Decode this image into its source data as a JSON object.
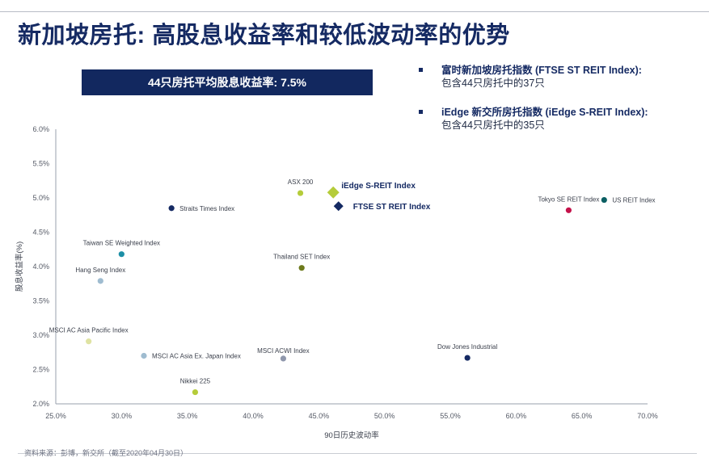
{
  "title": "新加坡房托: 高股息收益率和较低波动率的优势",
  "highlight_box": "44只房托平均股息收益率: 7.5%",
  "index_notes": [
    {
      "name": "富时新加坡房托指数 (FTSE ST REIT Index):",
      "desc": "包含44只房托中的37只"
    },
    {
      "name": "iEdge 新交所房托指数 (iEdge S-REIT Index):",
      "desc": "包含44只房托中的35只"
    }
  ],
  "source": "资料来源：彭博，新交所（截至2020年04月30日）",
  "colors": {
    "navy": "#152a63",
    "lime": "#b5cc3a",
    "teal": "#1d8fa6",
    "light_blue": "#9fbcd0",
    "pale_yellow": "#dfe3a3",
    "olive": "#6d7a1c",
    "gray_blue": "#8f97ac",
    "crimson": "#c4124a",
    "dark_teal": "#0b5f63"
  },
  "chart_data": {
    "type": "scatter",
    "xlabel": "90日历史波动率",
    "ylabel": "股息收益率(%)",
    "xlim": [
      25.0,
      70.0
    ],
    "ylim": [
      2.0,
      6.0
    ],
    "x_ticks": [
      "25.0%",
      "30.0%",
      "35.0%",
      "40.0%",
      "45.0%",
      "50.0%",
      "55.0%",
      "60.0%",
      "65.0%",
      "70.0%"
    ],
    "y_ticks": [
      "2.0%",
      "2.5%",
      "3.0%",
      "3.5%",
      "4.0%",
      "4.5%",
      "5.0%",
      "5.5%",
      "6.0%"
    ],
    "grid": false,
    "points": [
      {
        "label": "ASX 200",
        "x": 43.6,
        "y": 5.07,
        "color": "lime",
        "shape": "circle",
        "emphasis": false
      },
      {
        "label": "iEdge S-REIT Index",
        "x": 46.1,
        "y": 5.08,
        "color": "lime",
        "shape": "diamond",
        "emphasis": true
      },
      {
        "label": "FTSE ST REIT Index",
        "x": 46.5,
        "y": 4.88,
        "color": "navy",
        "shape": "diamond",
        "emphasis": true
      },
      {
        "label": "Straits Times Index",
        "x": 33.8,
        "y": 4.85,
        "color": "navy",
        "shape": "circle",
        "emphasis": false
      },
      {
        "label": "Taiwan SE Weighted Index",
        "x": 30.0,
        "y": 4.18,
        "color": "teal",
        "shape": "circle",
        "emphasis": false
      },
      {
        "label": "Hang Seng Index",
        "x": 28.4,
        "y": 3.79,
        "color": "light_blue",
        "shape": "circle",
        "emphasis": false
      },
      {
        "label": "Thailand SET Index",
        "x": 43.7,
        "y": 3.98,
        "color": "olive",
        "shape": "circle",
        "emphasis": false
      },
      {
        "label": "MSCI AC Asia Pacific Index",
        "x": 27.5,
        "y": 2.91,
        "color": "pale_yellow",
        "shape": "circle",
        "emphasis": false
      },
      {
        "label": "MSCI AC Asia Ex. Japan Index",
        "x": 31.7,
        "y": 2.7,
        "color": "light_blue",
        "shape": "circle",
        "emphasis": false
      },
      {
        "label": "MSCI ACWI Index",
        "x": 42.3,
        "y": 2.66,
        "color": "gray_blue",
        "shape": "circle",
        "emphasis": false
      },
      {
        "label": "Nikkei 225",
        "x": 35.6,
        "y": 2.17,
        "color": "lime",
        "shape": "circle",
        "emphasis": false
      },
      {
        "label": "Dow Jones Industrial",
        "x": 56.3,
        "y": 2.67,
        "color": "navy",
        "shape": "circle",
        "emphasis": false
      },
      {
        "label": "Tokyo SE REIT Index",
        "x": 64.0,
        "y": 4.82,
        "color": "crimson",
        "shape": "circle",
        "emphasis": false
      },
      {
        "label": "US REIT Index",
        "x": 66.7,
        "y": 4.97,
        "color": "dark_teal",
        "shape": "circle",
        "emphasis": false
      }
    ]
  }
}
